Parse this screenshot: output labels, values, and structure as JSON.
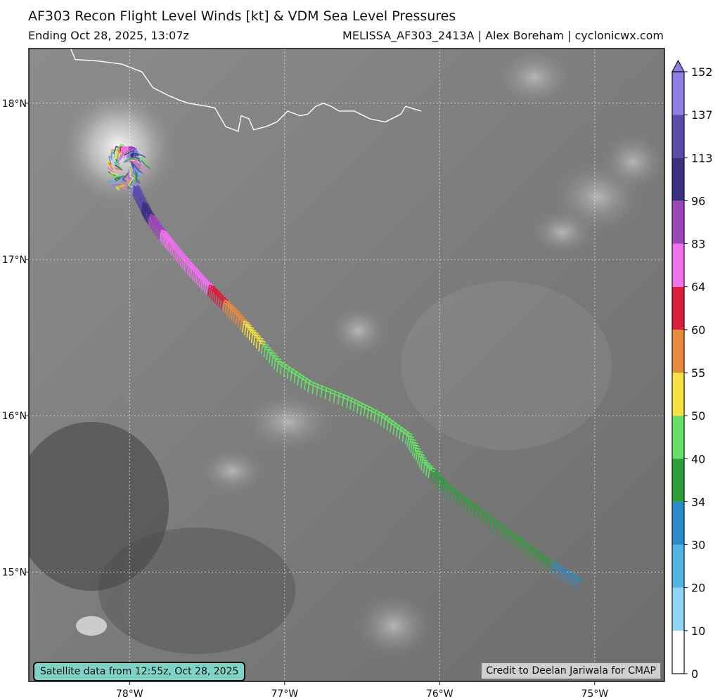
{
  "title": "AF303 Recon Flight Level Winds [kt] & VDM Sea Level Pressures",
  "subtitle_left": "Ending Oct 28, 2025, 13:07z",
  "subtitle_right": "MELISSA_AF303_2413A | Alex Boreham | cyclonicwx.com",
  "map": {
    "lon_range": [
      -78.65,
      -74.55
    ],
    "lat_range": [
      14.3,
      18.35
    ],
    "lon_ticks": [
      {
        "value": -78,
        "label": "78°W"
      },
      {
        "value": -77,
        "label": "77°W"
      },
      {
        "value": -76,
        "label": "76°W"
      },
      {
        "value": -75,
        "label": "75°W"
      }
    ],
    "lat_ticks": [
      {
        "value": 18,
        "label": "18°N"
      },
      {
        "value": 17,
        "label": "17°N"
      },
      {
        "value": 16,
        "label": "16°N"
      },
      {
        "value": 15,
        "label": "15°N"
      }
    ],
    "coastline_name": "Jamaica south coast",
    "coastline": [
      [
        -78.38,
        18.35
      ],
      [
        -78.35,
        18.28
      ],
      [
        -78.2,
        18.27
      ],
      [
        -78.05,
        18.25
      ],
      [
        -77.92,
        18.2
      ],
      [
        -77.85,
        18.1
      ],
      [
        -77.75,
        18.05
      ],
      [
        -77.68,
        18.02
      ],
      [
        -77.62,
        18.0
      ],
      [
        -77.5,
        17.98
      ],
      [
        -77.45,
        17.97
      ],
      [
        -77.38,
        17.85
      ],
      [
        -77.3,
        17.82
      ],
      [
        -77.28,
        17.92
      ],
      [
        -77.23,
        17.9
      ],
      [
        -77.2,
        17.83
      ],
      [
        -77.12,
        17.85
      ],
      [
        -77.05,
        17.88
      ],
      [
        -76.98,
        17.95
      ],
      [
        -76.9,
        17.92
      ],
      [
        -76.85,
        17.93
      ],
      [
        -76.8,
        17.98
      ],
      [
        -76.75,
        18.0
      ],
      [
        -76.7,
        17.98
      ],
      [
        -76.65,
        17.95
      ],
      [
        -76.55,
        17.95
      ],
      [
        -76.45,
        17.9
      ],
      [
        -76.35,
        17.88
      ],
      [
        -76.25,
        17.93
      ],
      [
        -76.22,
        17.98
      ],
      [
        -76.12,
        17.95
      ]
    ]
  },
  "colorbar": {
    "title": "kt",
    "levels": [
      0,
      10,
      20,
      30,
      34,
      40,
      50,
      55,
      60,
      64,
      83,
      96,
      113,
      137,
      152
    ],
    "colors": [
      "#ffffff",
      "#8fd6f5",
      "#4fb4e6",
      "#2b8bc8",
      "#2f9e3a",
      "#66e066",
      "#f6e243",
      "#ea8a3c",
      "#dc1d3c",
      "#f070f0",
      "#9b45b8",
      "#3b2f82",
      "#5b4ba8",
      "#8e7ee6"
    ]
  },
  "flight_track": [
    {
      "lon": -78.1,
      "lat": 17.65,
      "kt": 45
    },
    {
      "lon": -78.0,
      "lat": 17.65,
      "kt": 90
    },
    {
      "lon": -77.97,
      "lat": 17.55,
      "kt": 140
    },
    {
      "lon": -78.0,
      "lat": 17.45,
      "kt": 145
    },
    {
      "lon": -77.95,
      "lat": 17.35,
      "kt": 125
    },
    {
      "lon": -77.9,
      "lat": 17.25,
      "kt": 100
    },
    {
      "lon": -77.83,
      "lat": 17.15,
      "kt": 85
    },
    {
      "lon": -77.75,
      "lat": 17.05,
      "kt": 78
    },
    {
      "lon": -77.65,
      "lat": 16.93,
      "kt": 72
    },
    {
      "lon": -77.55,
      "lat": 16.82,
      "kt": 66
    },
    {
      "lon": -77.45,
      "lat": 16.72,
      "kt": 62
    },
    {
      "lon": -77.33,
      "lat": 16.6,
      "kt": 57
    },
    {
      "lon": -77.2,
      "lat": 16.45,
      "kt": 52
    },
    {
      "lon": -77.05,
      "lat": 16.28,
      "kt": 45
    },
    {
      "lon": -76.85,
      "lat": 16.15,
      "kt": 44
    },
    {
      "lon": -76.6,
      "lat": 16.05,
      "kt": 43
    },
    {
      "lon": -76.4,
      "lat": 15.95,
      "kt": 42
    },
    {
      "lon": -76.22,
      "lat": 15.82,
      "kt": 44
    },
    {
      "lon": -76.12,
      "lat": 15.65,
      "kt": 41
    },
    {
      "lon": -75.98,
      "lat": 15.5,
      "kt": 38
    },
    {
      "lon": -75.78,
      "lat": 15.35,
      "kt": 37
    },
    {
      "lon": -75.55,
      "lat": 15.18,
      "kt": 36
    },
    {
      "lon": -75.33,
      "lat": 15.02,
      "kt": 35
    },
    {
      "lon": -75.1,
      "lat": 14.88,
      "kt": 30
    }
  ],
  "eye": {
    "lon": -78.0,
    "lat": 17.62
  },
  "satellite_note": "Satellite data from 12:55z, Oct 28, 2025",
  "credit_note": "Credit to Deelan Jariwala for CMAP"
}
